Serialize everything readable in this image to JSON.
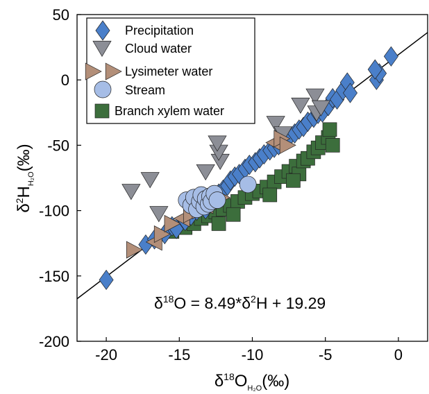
{
  "chart_data": {
    "type": "scatter",
    "xlim": [
      -22,
      2
    ],
    "ylim": [
      -200,
      50
    ],
    "xticks": [
      -20,
      -15,
      -10,
      -5,
      0
    ],
    "yticks": [
      50,
      0,
      -50,
      -100,
      -150,
      -200
    ],
    "xtick_labels": [
      "-20",
      "-15",
      "-10",
      "-5",
      "0"
    ],
    "ytick_labels": [
      "50",
      "0",
      "-50",
      "-100",
      "-150",
      "-200"
    ],
    "xlabel": {
      "prefix": "δ",
      "sup": "18",
      "base": "O",
      "sub": "H₂O",
      "unit": "(‰)"
    },
    "ylabel": {
      "prefix": "δ",
      "sup": "2",
      "base": "H",
      "sub": "H₂O",
      "unit": "(‰)"
    },
    "annotation": {
      "prefix": "δ",
      "sup1": "18",
      "mid": "O = 8.49*δ",
      "sup2": "2",
      "suffix": "H + 19.29"
    },
    "regression": {
      "slope": 8.49,
      "intercept": 19.29
    },
    "grid": false,
    "legend_position": "top-left",
    "series": [
      {
        "name": "Precipitation",
        "marker": "diamond",
        "color": "#4a7fc9",
        "points": [
          [
            -20,
            -153
          ],
          [
            -17.3,
            -126
          ],
          [
            -16.7,
            -122
          ],
          [
            -16,
            -118
          ],
          [
            -15.5,
            -112
          ],
          [
            -15.2,
            -114
          ],
          [
            -14.6,
            -108
          ],
          [
            -14.2,
            -104
          ],
          [
            -13.8,
            -100
          ],
          [
            -13.5,
            -97
          ],
          [
            -13.2,
            -99
          ],
          [
            -12.9,
            -93
          ],
          [
            -12.6,
            -90
          ],
          [
            -12.3,
            -87
          ],
          [
            -12,
            -84
          ],
          [
            -11.7,
            -81
          ],
          [
            -11.5,
            -77
          ],
          [
            -11.2,
            -74
          ],
          [
            -10.9,
            -72
          ],
          [
            -10.5,
            -68
          ],
          [
            -10.2,
            -65
          ],
          [
            -9.8,
            -63
          ],
          [
            -9.5,
            -60
          ],
          [
            -9.2,
            -57
          ],
          [
            -8.8,
            -54
          ],
          [
            -8.5,
            -52
          ],
          [
            -8.2,
            -50
          ],
          [
            -7.8,
            -46
          ],
          [
            -7.5,
            -44
          ],
          [
            -7.1,
            -41
          ],
          [
            -6.8,
            -38
          ],
          [
            -6.5,
            -36
          ],
          [
            -6.2,
            -32
          ],
          [
            -5.8,
            -29
          ],
          [
            -5.5,
            -26
          ],
          [
            -5.2,
            -25
          ],
          [
            -4.8,
            -20
          ],
          [
            -4.5,
            -14
          ],
          [
            -4.2,
            -15
          ],
          [
            -3.8,
            -8
          ],
          [
            -3.5,
            -2
          ],
          [
            -1.5,
            0
          ],
          [
            -1.3,
            5
          ],
          [
            -1.6,
            8
          ],
          [
            -0.5,
            18
          ],
          [
            -3.3,
            -10
          ]
        ]
      },
      {
        "name": "Cloud water",
        "marker": "triangle-down",
        "color": "#8c8e96",
        "points": [
          [
            -18.3,
            -85
          ],
          [
            -17,
            -76
          ],
          [
            -16.4,
            -102
          ],
          [
            -13.2,
            -70
          ],
          [
            -12.2,
            -62
          ],
          [
            -12.3,
            -55
          ],
          [
            -12.4,
            -48
          ],
          [
            -8.4,
            -33
          ],
          [
            -7.9,
            -41
          ],
          [
            -5.7,
            -12
          ],
          [
            -5.6,
            -25
          ],
          [
            -6.7,
            -19
          ],
          [
            -5.3,
            -21
          ]
        ]
      },
      {
        "name": "Lysimeter water",
        "marker": "triangle-side",
        "color": "#b38f79",
        "points": [
          [
            -18.1,
            -130
          ],
          [
            -16.7,
            -124
          ],
          [
            -16.2,
            -118
          ],
          [
            -15.5,
            -110
          ],
          [
            -14.8,
            -106
          ],
          [
            -14.2,
            -103
          ],
          [
            -13.6,
            -100
          ],
          [
            -13.2,
            -96
          ],
          [
            -12.6,
            -93
          ],
          [
            -12.1,
            -90
          ],
          [
            -8.5,
            -48
          ],
          [
            -8,
            -45
          ],
          [
            -7.6,
            -50
          ]
        ]
      },
      {
        "name": "Stream",
        "marker": "circle",
        "color": "#a6bde6",
        "points": [
          [
            -14.5,
            -92
          ],
          [
            -14.2,
            -96
          ],
          [
            -14,
            -90
          ],
          [
            -13.8,
            -99
          ],
          [
            -13.6,
            -93
          ],
          [
            -13.5,
            -88
          ],
          [
            -13.3,
            -97
          ],
          [
            -13.2,
            -91
          ],
          [
            -13,
            -95
          ],
          [
            -12.9,
            -89
          ],
          [
            -12.8,
            -93
          ],
          [
            -12.6,
            -87
          ],
          [
            -12.4,
            -92
          ],
          [
            -10.3,
            -80
          ]
        ]
      },
      {
        "name": "Branch xylem water",
        "marker": "square",
        "color": "#3c6e3c",
        "points": [
          [
            -15.5,
            -116
          ],
          [
            -14.6,
            -113
          ],
          [
            -14,
            -110
          ],
          [
            -13.5,
            -106
          ],
          [
            -13,
            -104
          ],
          [
            -12.5,
            -101
          ],
          [
            -12,
            -99
          ],
          [
            -11.5,
            -96
          ],
          [
            -11,
            -93
          ],
          [
            -10.5,
            -90
          ],
          [
            -10,
            -87
          ],
          [
            -9.5,
            -85
          ],
          [
            -9,
            -82
          ],
          [
            -8.5,
            -78
          ],
          [
            -8,
            -74
          ],
          [
            -7.5,
            -70
          ],
          [
            -7,
            -66
          ],
          [
            -6.8,
            -72
          ],
          [
            -6.5,
            -62
          ],
          [
            -6.2,
            -60
          ],
          [
            -5.8,
            -55
          ],
          [
            -5.5,
            -52
          ],
          [
            -5.2,
            -48
          ],
          [
            -4.8,
            -44
          ],
          [
            -4.5,
            -50
          ],
          [
            -4.7,
            -38
          ],
          [
            -7.2,
            -77
          ],
          [
            -8.8,
            -88
          ],
          [
            -11.3,
            -103
          ],
          [
            -12.3,
            -110
          ]
        ]
      }
    ]
  }
}
